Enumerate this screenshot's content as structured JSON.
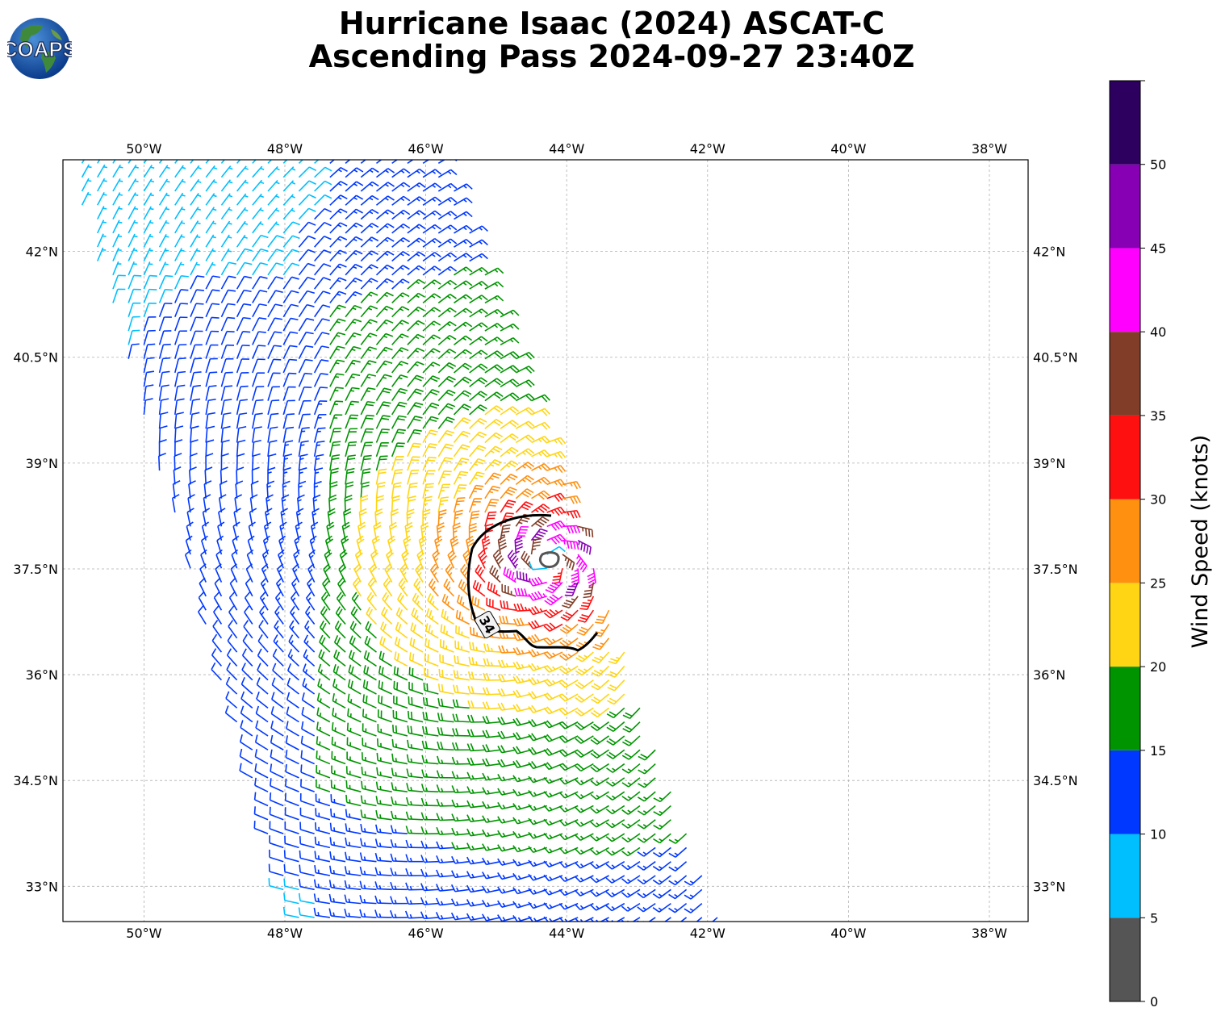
{
  "header": {
    "title_line1": "Hurricane Isaac (2024) ASCAT-C",
    "title_line2": "Ascending Pass 2024-09-27 23:40Z",
    "logo_text": "COAPS"
  },
  "map": {
    "lon_ticks": [
      "50°W",
      "48°W",
      "46°W",
      "44°W",
      "42°W",
      "40°W",
      "38°W"
    ],
    "lon_values": [
      -50,
      -48,
      -46,
      -44,
      -42,
      -40,
      -38
    ],
    "lat_ticks": [
      "42°N",
      "40.5°N",
      "39°N",
      "37.5°N",
      "36°N",
      "34.5°N",
      "33°N"
    ],
    "lat_values": [
      42,
      40.5,
      39,
      37.5,
      36,
      34.5,
      33
    ],
    "extent": {
      "lon_min": -51.15,
      "lon_max": -37.45,
      "lat_min": 32.5,
      "lat_max": 43.3
    },
    "storm_center": {
      "lon": -44.25,
      "lat": 37.6
    },
    "contour_label": "34",
    "swath_corners": [
      [
        -51.1,
        43.3
      ],
      [
        -45.7,
        43.3
      ],
      [
        -41.8,
        32.5
      ],
      [
        -47.9,
        32.5
      ]
    ]
  },
  "colorbar": {
    "label": "Wind Speed (knots)",
    "ticks": [
      "0",
      "5",
      "10",
      "15",
      "20",
      "25",
      "30",
      "35",
      "40",
      "45",
      "50"
    ],
    "bins": [
      {
        "min": 0,
        "max": 5,
        "color": "#555555"
      },
      {
        "min": 5,
        "max": 10,
        "color": "#00bfff"
      },
      {
        "min": 10,
        "max": 15,
        "color": "#0038ff"
      },
      {
        "min": 15,
        "max": 20,
        "color": "#009500"
      },
      {
        "min": 20,
        "max": 25,
        "color": "#ffd514"
      },
      {
        "min": 25,
        "max": 30,
        "color": "#ff9010"
      },
      {
        "min": 30,
        "max": 35,
        "color": "#ff1010"
      },
      {
        "min": 35,
        "max": 40,
        "color": "#813d28"
      },
      {
        "min": 40,
        "max": 45,
        "color": "#ff00ff"
      },
      {
        "min": 45,
        "max": 50,
        "color": "#8700b4"
      },
      {
        "min": 50,
        "max": 55,
        "color": "#2d0060"
      }
    ]
  }
}
